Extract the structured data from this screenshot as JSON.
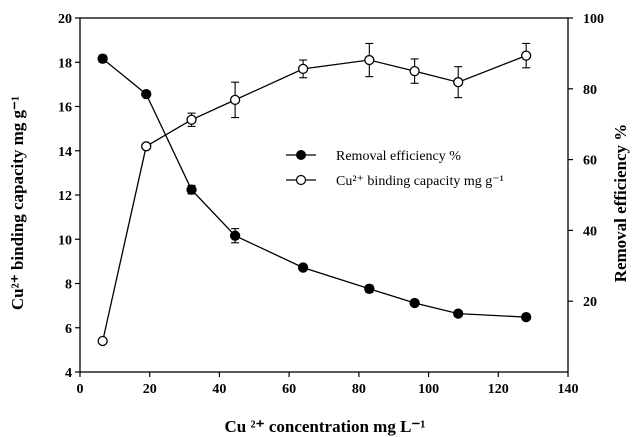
{
  "chart_data": {
    "type": "line",
    "x": [
      6.5,
      19,
      32,
      44.5,
      64,
      83,
      96,
      108.5,
      128
    ],
    "xlabel": "Cu ²⁺ concentration  mg L⁻¹",
    "ylabel": "Cu²⁺ binding capacity  mg g⁻¹",
    "y2label": "Removal efficiency  %",
    "xlim": [
      0,
      140
    ],
    "ylim": [
      4,
      20
    ],
    "y2lim": [
      0,
      100
    ],
    "xticks": [
      "0",
      "20",
      "40",
      "60",
      "80",
      "100",
      "120",
      "140"
    ],
    "yticks": [
      "4",
      "6",
      "8",
      "10",
      "12",
      "14",
      "16",
      "18",
      "20"
    ],
    "y2ticks": [
      "20",
      "40",
      "60",
      "80",
      "100"
    ],
    "grid": false,
    "legend_position": "center-right",
    "series": [
      {
        "name": "Removal efficiency %",
        "axis": "right",
        "marker": "filled-circle",
        "color": "#000000",
        "values": [
          88.5,
          78.5,
          51.5,
          38.5,
          29.5,
          23.5,
          19.5,
          16.5,
          15.5
        ],
        "error": [
          1,
          0,
          1.2,
          2,
          0.8,
          1,
          0.8,
          0.8,
          0.8
        ]
      },
      {
        "name": "Cu²⁺ binding capacity mg g⁻¹",
        "axis": "left",
        "marker": "open-circle",
        "color": "#000000",
        "values": [
          5.4,
          14.2,
          15.4,
          16.3,
          17.7,
          18.1,
          17.6,
          17.1,
          18.3
        ],
        "error": [
          0,
          0,
          0.3,
          0.8,
          0.4,
          0.75,
          0.55,
          0.7,
          0.55
        ]
      }
    ]
  }
}
